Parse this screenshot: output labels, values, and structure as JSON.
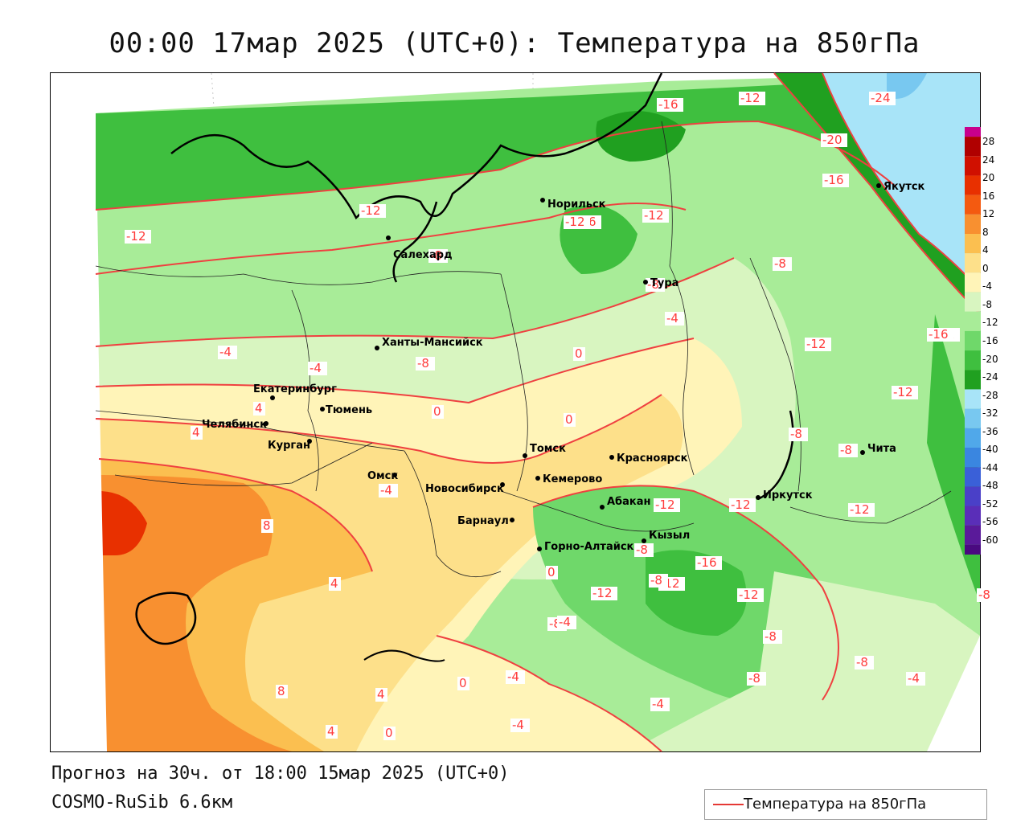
{
  "title": "00:00 17мар 2025 (UTC+0): Температура на 850гПа",
  "forecast_text": "Прогноз на 30ч. от 18:00 15мар 2025 (UTC+0)",
  "model_text": "COSMO-RuSib 6.6км",
  "legend": {
    "label": "Температура на 850гПа",
    "line_color": "#e53935"
  },
  "colorbar": {
    "ticks": [
      "28",
      "24",
      "20",
      "16",
      "12",
      "8",
      "4",
      "0",
      "-4",
      "-8",
      "-12",
      "-16",
      "-20",
      "-24",
      "-28",
      "-32",
      "-36",
      "-40",
      "-44",
      "-48",
      "-52",
      "-56",
      "-60"
    ],
    "colors": [
      "#c8008c",
      "#b00000",
      "#d01000",
      "#e83000",
      "#f45a10",
      "#f89030",
      "#fbbf50",
      "#fde08a",
      "#fff4b8",
      "#d8f5c0",
      "#a8ec98",
      "#6fd86a",
      "#3fbf3f",
      "#20a020",
      "#a8e4f8",
      "#78c8f0",
      "#50a8ea",
      "#3a86e0",
      "#3a60d8",
      "#4a40c8",
      "#5a2eb8",
      "#5a1a9a",
      "#4a0a80"
    ]
  },
  "cities": [
    {
      "name": "Салехард"
    },
    {
      "name": "Норильск"
    },
    {
      "name": "Якутск"
    },
    {
      "name": "Тура"
    },
    {
      "name": "Ханты-Мансийск"
    },
    {
      "name": "Екатеринбург"
    },
    {
      "name": "Тюмень"
    },
    {
      "name": "Челябинск"
    },
    {
      "name": "Курган"
    },
    {
      "name": "Омск"
    },
    {
      "name": "Новосибирск"
    },
    {
      "name": "Томск"
    },
    {
      "name": "Кемерово"
    },
    {
      "name": "Красноярск"
    },
    {
      "name": "Барнаул"
    },
    {
      "name": "Абакан"
    },
    {
      "name": "Горно-Алтайск"
    },
    {
      "name": "Кызыл"
    },
    {
      "name": "Иркутск"
    },
    {
      "name": "Чита"
    }
  ],
  "isotherm_labels": [
    "-16",
    "-12",
    "-24",
    "-20",
    "-16",
    "-12",
    "-12",
    "-16",
    "-12",
    "-12",
    "-8",
    "-8",
    "-8",
    "-4",
    "-12",
    "-12",
    "-16",
    "-8",
    "-4",
    "0",
    "-4",
    "0",
    "0",
    "-8",
    "-8",
    "-12",
    "4",
    "-4",
    "-12",
    "-8",
    "8",
    "4",
    "4",
    "8",
    "4",
    "0",
    "0",
    "-4",
    "-8",
    "-12",
    "-12",
    "-8",
    "-8",
    "-8",
    "-4",
    "-4",
    "-8",
    "-16",
    "-12",
    "-12",
    "-8",
    "-12",
    "0",
    "-4",
    "4",
    "-4"
  ]
}
